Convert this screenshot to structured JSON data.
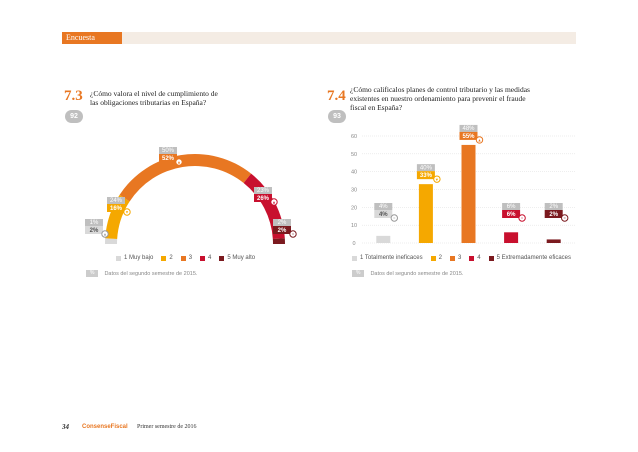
{
  "section": {
    "label": "Encuesta"
  },
  "colors": {
    "accent": "#e87722",
    "grey": "#bfbfbf",
    "light": "#d9d9d9",
    "red": "#c8102e",
    "dark": "#7b1a1f",
    "yellow": "#f5a800"
  },
  "q73": {
    "number": "7.3",
    "count": "92",
    "text_line1": "¿Cómo valora el nivel de cumplimiento de",
    "text_line2": "las obligaciones tributarias en España?",
    "legend": [
      "1 Muy bajo",
      "2",
      "3",
      "4",
      "5 Muy alto"
    ],
    "note_badge": "%",
    "note": "Datos del segundo semestre de 2015."
  },
  "q74": {
    "number": "7.4",
    "count": "93",
    "text_line1": "¿Cómo calificalos planes de control tributario y las medidas",
    "text_line2": "existentes en nuestro ordenamiento para prevenir el fraude",
    "text_line3": "fiscal en España?",
    "legend": [
      "1 Totalmente ineficaces",
      "2",
      "3",
      "4",
      "5 Extremadamente eficaces"
    ],
    "note_badge": "%",
    "note": "Datos del segundo semestre de 2015."
  },
  "chart_data": [
    {
      "type": "pie",
      "title": "¿Cómo valora el nivel de cumplimiento de las obligaciones tributarias en España?",
      "categories": [
        "1 Muy bajo",
        "2",
        "3",
        "4",
        "5 Muy alto"
      ],
      "values": [
        2,
        16,
        52,
        26,
        2
      ],
      "previous_labels": [
        "1%",
        "24%",
        "50%",
        "23%",
        "2%"
      ],
      "current_labels": [
        "2%",
        "16%",
        "52%",
        "26%",
        "2%"
      ],
      "colors": [
        "#d9d9d9",
        "#f5a800",
        "#e87722",
        "#c8102e",
        "#7b1a1f"
      ],
      "arrows": [
        "up",
        "down",
        "up",
        "up",
        "eq"
      ]
    },
    {
      "type": "bar",
      "title": "¿Cómo califica los planes de control tributario y las medidas existentes en nuestro ordenamiento para prevenir el fraude fiscal en España?",
      "categories": [
        "1 Totalmente ineficaces",
        "2",
        "3",
        "4",
        "5 Extremadamente eficaces"
      ],
      "values": [
        4,
        33,
        55,
        6,
        2
      ],
      "previous_labels": [
        "4%",
        "40%",
        "48%",
        "6%",
        "2%"
      ],
      "current_labels": [
        "4%",
        "33%",
        "55%",
        "6%",
        "2%"
      ],
      "colors": [
        "#d9d9d9",
        "#f5a800",
        "#e87722",
        "#c8102e",
        "#7b1a1f"
      ],
      "arrows": [
        "eq",
        "down",
        "up",
        "eq",
        "eq"
      ],
      "yticks": [
        "0",
        "10",
        "20",
        "30",
        "40",
        "50",
        "60"
      ],
      "ylim": [
        0,
        60
      ]
    }
  ],
  "footer": {
    "page": "34",
    "brand": "ConsenseFiscal",
    "semester": "Primer semestre de 2016"
  }
}
